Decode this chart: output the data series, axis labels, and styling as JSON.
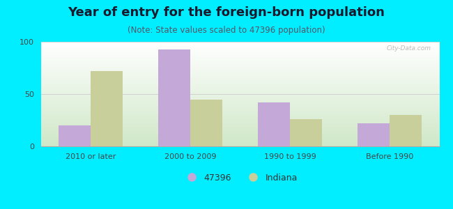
{
  "title": "Year of entry for the foreign-born population",
  "subtitle": "(Note: State values scaled to 47396 population)",
  "categories": [
    "2010 or later",
    "2000 to 2009",
    "1990 to 1999",
    "Before 1990"
  ],
  "values_47396": [
    20,
    93,
    42,
    22
  ],
  "values_indiana": [
    72,
    45,
    26,
    30
  ],
  "color_47396": "#c4a8d8",
  "color_indiana": "#c8cf9a",
  "ylim": [
    0,
    100
  ],
  "yticks": [
    0,
    50,
    100
  ],
  "outer_background": "#00eeff",
  "legend_label_47396": "47396",
  "legend_label_indiana": "Indiana",
  "title_fontsize": 13,
  "subtitle_fontsize": 8.5,
  "bar_width": 0.32,
  "watermark_text": "City-Data.com"
}
